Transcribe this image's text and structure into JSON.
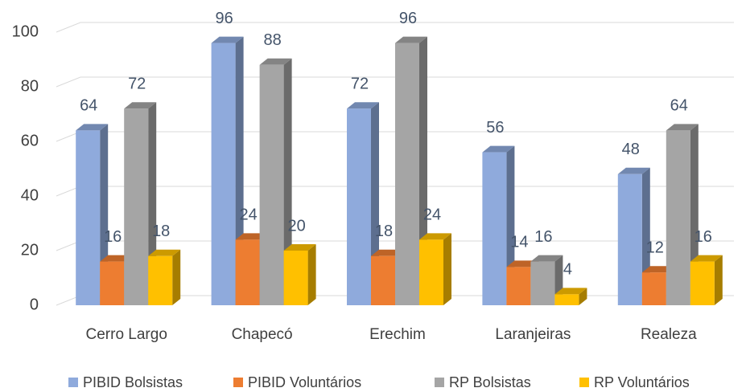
{
  "chart_data": {
    "type": "bar",
    "categories": [
      "Cerro Largo",
      "Chapecó",
      "Erechim",
      "Laranjeiras",
      "Realeza"
    ],
    "series": [
      {
        "name": "PIBID Bolsistas",
        "color": "#8faadc",
        "values": [
          64,
          96,
          72,
          56,
          48
        ]
      },
      {
        "name": "PIBID Voluntários",
        "color": "#ed7d31",
        "values": [
          16,
          24,
          18,
          14,
          12
        ]
      },
      {
        "name": "RP Bolsistas",
        "color": "#a5a5a5",
        "values": [
          72,
          88,
          96,
          16,
          64
        ]
      },
      {
        "name": "RP Voluntários",
        "color": "#ffc000",
        "values": [
          18,
          20,
          24,
          4,
          16
        ]
      }
    ],
    "ylim": [
      0,
      100
    ],
    "yticks": [
      0,
      20,
      40,
      60,
      80,
      100
    ],
    "grid": true,
    "legend": "bottom"
  }
}
